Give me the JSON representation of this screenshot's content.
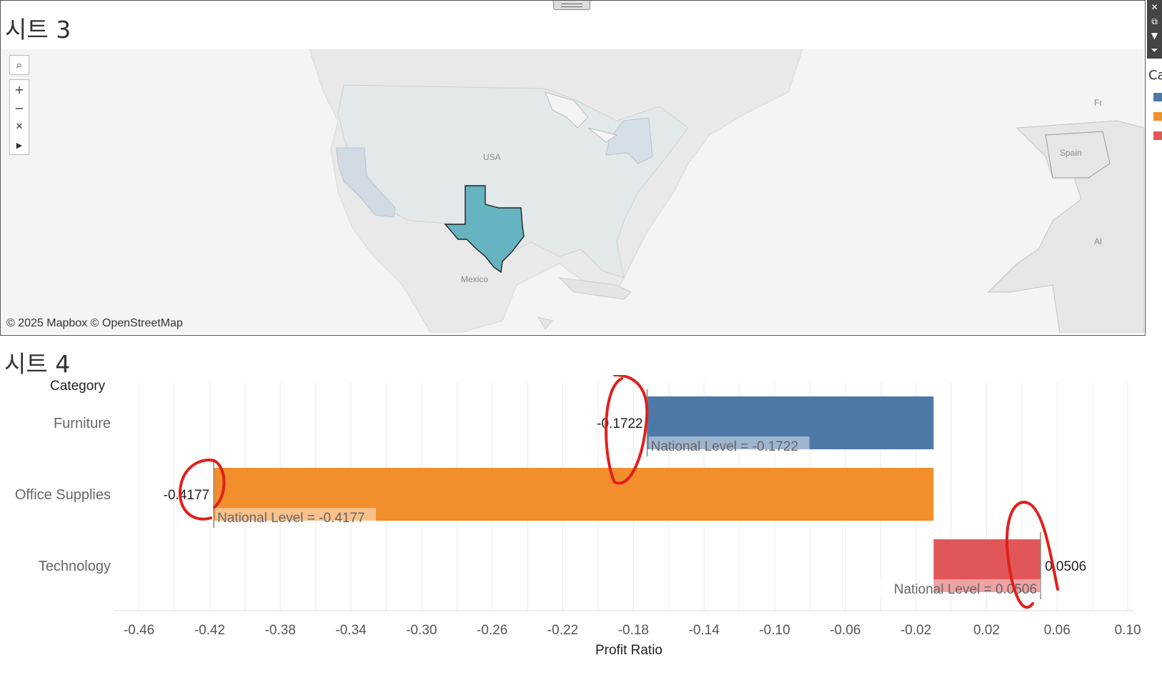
{
  "sheet3": {
    "title": "시트 3",
    "attribution": "© 2025 Mapbox © OpenStreetMap",
    "map_labels": {
      "usa": "USA",
      "mexico": "Mexico",
      "spain": "Spain",
      "france_partial": "Fr",
      "algeria_partial": "Al"
    },
    "highlighted_state": "Texas",
    "highlight_color": "#66b3c2",
    "tools": [
      "search-icon",
      "zoom-in-icon",
      "zoom-out-icon",
      "pin-reset-icon",
      "expand-arrow-icon"
    ]
  },
  "toolbar_icons": [
    "close-icon",
    "popout-icon",
    "filter-icon",
    "dropdown-icon"
  ],
  "legend_peek": {
    "title": "Ca",
    "colors": [
      "#4e79a7",
      "#f28e2b",
      "#e15759"
    ]
  },
  "sheet4": {
    "title": "시트 4",
    "category_header": "Category",
    "axis_title": "Profit Ratio",
    "ticks": [
      "-0.46",
      "-0.42",
      "-0.38",
      "-0.34",
      "-0.30",
      "-0.26",
      "-0.22",
      "-0.18",
      "-0.14",
      "-0.10",
      "-0.06",
      "-0.02",
      "0.02",
      "0.06",
      "0.10"
    ]
  },
  "chart_data": {
    "type": "bar",
    "orientation": "horizontal",
    "categories": [
      "Furniture",
      "Office Supplies",
      "Technology"
    ],
    "values": [
      -0.1722,
      -0.4177,
      0.0506
    ],
    "value_labels": [
      "-0.1722",
      "-0.4177",
      "0.0506"
    ],
    "colors": [
      "#4e79a7",
      "#f28e2b",
      "#e15759"
    ],
    "reference_lines": [
      {
        "label": "National Level = -0.1722",
        "value": -0.1722
      },
      {
        "label": "National Level = -0.4177",
        "value": -0.4177
      },
      {
        "label": "National Level = 0.0506",
        "value": 0.0506
      }
    ],
    "xlabel": "Profit Ratio",
    "ylabel": "Category",
    "xlim": [
      -0.474,
      0.104
    ],
    "tick_values": [
      -0.46,
      -0.42,
      -0.38,
      -0.34,
      -0.3,
      -0.26,
      -0.22,
      -0.18,
      -0.14,
      -0.1,
      -0.06,
      -0.02,
      0.02,
      0.06,
      0.1
    ],
    "grid": true,
    "annotation_color": "#e0201b"
  }
}
